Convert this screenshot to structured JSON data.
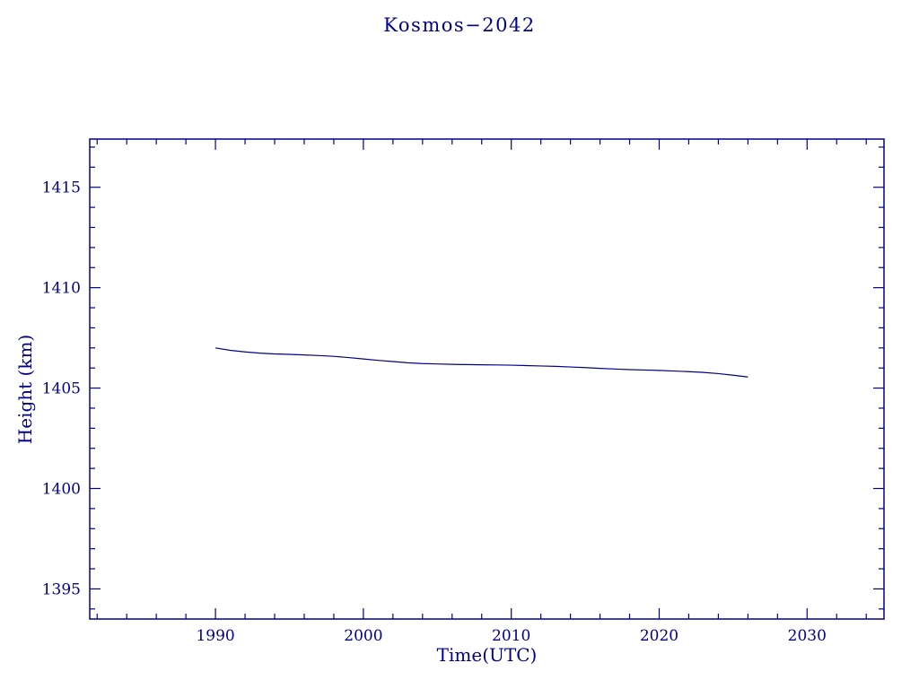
{
  "page": {
    "background": "#ffffff",
    "accent_color": "#00008b"
  },
  "chart_data": {
    "type": "line",
    "title": "Kosmos−2042",
    "xlabel": "Time(UTC)",
    "ylabel": "Height (km)",
    "xlim": [
      1981.5,
      2035.2
    ],
    "ylim": [
      1393.5,
      1417.4
    ],
    "x_major_ticks": [
      1990,
      2000,
      2010,
      2020,
      2030
    ],
    "x_minor_step": 2,
    "y_major_ticks": [
      1395,
      1400,
      1405,
      1410,
      1415
    ],
    "y_minor_step": 1,
    "grid": false,
    "legend": "none",
    "line_color": "#00008b",
    "axis_color": "#00008b",
    "series": [
      {
        "name": "Kosmos-2042 height",
        "x": [
          1990,
          1991,
          1992,
          1993,
          1994,
          1995,
          1996,
          1997,
          1998,
          1999,
          2000,
          2001,
          2002,
          2003,
          2004,
          2005,
          2006,
          2007,
          2008,
          2009,
          2010,
          2011,
          2012,
          2013,
          2014,
          2015,
          2016,
          2017,
          2018,
          2019,
          2020,
          2021,
          2022,
          2023,
          2024,
          2025,
          2026
        ],
        "y": [
          1407.0,
          1406.88,
          1406.8,
          1406.74,
          1406.7,
          1406.68,
          1406.65,
          1406.62,
          1406.58,
          1406.52,
          1406.45,
          1406.38,
          1406.32,
          1406.26,
          1406.22,
          1406.2,
          1406.18,
          1406.17,
          1406.16,
          1406.15,
          1406.14,
          1406.12,
          1406.1,
          1406.08,
          1406.05,
          1406.02,
          1405.98,
          1405.95,
          1405.92,
          1405.9,
          1405.88,
          1405.85,
          1405.82,
          1405.78,
          1405.72,
          1405.64,
          1405.55
        ]
      }
    ]
  }
}
